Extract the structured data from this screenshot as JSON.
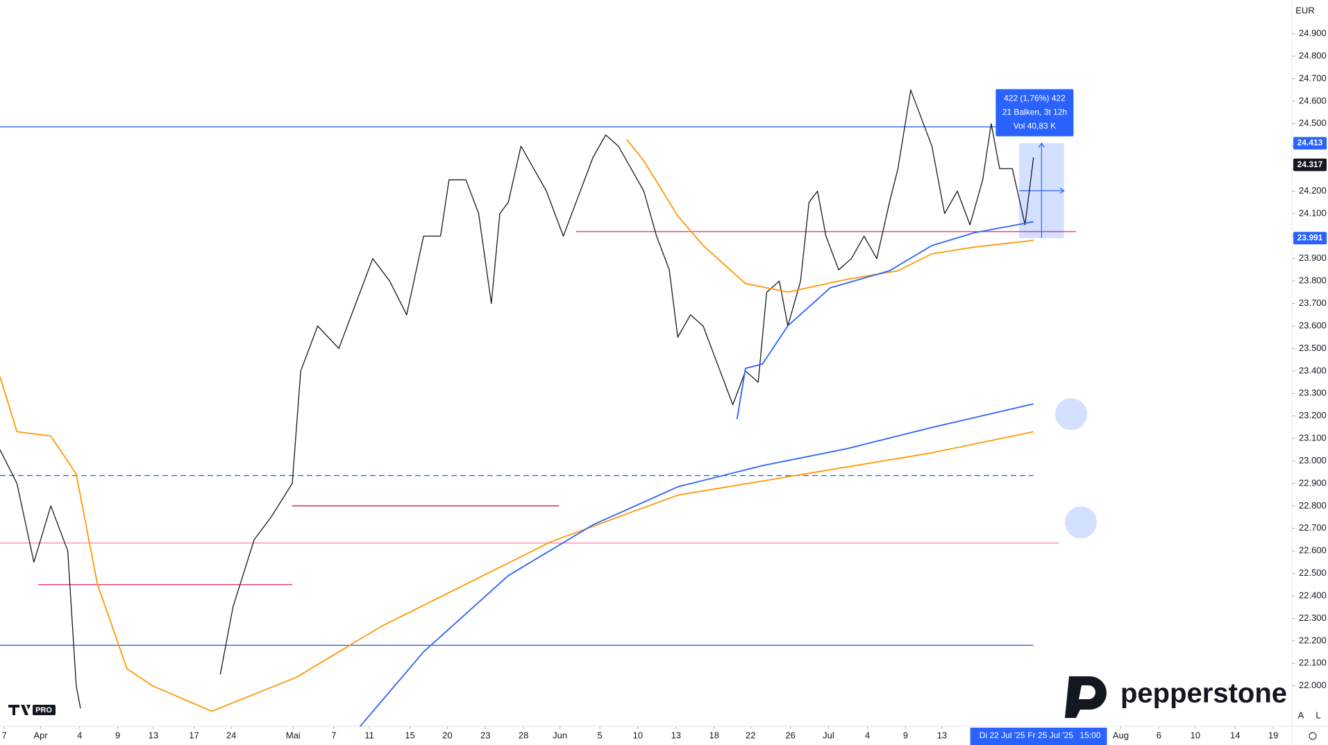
{
  "chart_data": {
    "type": "line",
    "currency": "EUR",
    "ylim": [
      21820,
      25050
    ],
    "xlim": [
      0,
      305
    ],
    "yticks": [
      {
        "value": 22000,
        "label": "22.000"
      },
      {
        "value": 22100,
        "label": "22.100"
      },
      {
        "value": 22200,
        "label": "22.200"
      },
      {
        "value": 22300,
        "label": "22.300"
      },
      {
        "value": 22400,
        "label": "22.400"
      },
      {
        "value": 22500,
        "label": "22.500"
      },
      {
        "value": 22600,
        "label": "22.600"
      },
      {
        "value": 22700,
        "label": "22.700"
      },
      {
        "value": 22800,
        "label": "22.800"
      },
      {
        "value": 22900,
        "label": "22.900"
      },
      {
        "value": 23000,
        "label": "23.000"
      },
      {
        "value": 23100,
        "label": "23.100"
      },
      {
        "value": 23200,
        "label": "23.200"
      },
      {
        "value": 23300,
        "label": "23.300"
      },
      {
        "value": 23400,
        "label": "23.400"
      },
      {
        "value": 23500,
        "label": "23.500"
      },
      {
        "value": 23600,
        "label": "23.600"
      },
      {
        "value": 23700,
        "label": "23.700"
      },
      {
        "value": 23800,
        "label": "23.800"
      },
      {
        "value": 23900,
        "label": "23.900"
      },
      {
        "value": 24000,
        "label": "24.000"
      },
      {
        "value": 24100,
        "label": "24.100"
      },
      {
        "value": 24200,
        "label": "24.200"
      },
      {
        "value": 24300,
        "label": "24.300"
      },
      {
        "value": 24400,
        "label": "24.400"
      },
      {
        "value": 24500,
        "label": "24.500"
      },
      {
        "value": 24600,
        "label": "24.600"
      },
      {
        "value": 24700,
        "label": "24.700"
      },
      {
        "value": 24800,
        "label": "24.800"
      },
      {
        "value": 24900,
        "label": "24.900"
      }
    ],
    "xticks": [
      {
        "value": 1,
        "label": "7"
      },
      {
        "value": 9.6,
        "label": "Apr"
      },
      {
        "value": 18.8,
        "label": "4"
      },
      {
        "value": 27.8,
        "label": "9"
      },
      {
        "value": 36.2,
        "label": "13"
      },
      {
        "value": 45.8,
        "label": "17"
      },
      {
        "value": 54.6,
        "label": "24"
      },
      {
        "value": 69.2,
        "label": "Mai"
      },
      {
        "value": 78.8,
        "label": "7"
      },
      {
        "value": 87.2,
        "label": "11"
      },
      {
        "value": 96.8,
        "label": "15"
      },
      {
        "value": 105.6,
        "label": "20"
      },
      {
        "value": 114.6,
        "label": "23"
      },
      {
        "value": 123.6,
        "label": "28"
      },
      {
        "value": 132.2,
        "label": "Jun"
      },
      {
        "value": 141.6,
        "label": "5"
      },
      {
        "value": 150.6,
        "label": "10"
      },
      {
        "value": 159.6,
        "label": "13"
      },
      {
        "value": 168.6,
        "label": "18"
      },
      {
        "value": 177.2,
        "label": "22"
      },
      {
        "value": 186.6,
        "label": "26"
      },
      {
        "value": 195.6,
        "label": "Jul"
      },
      {
        "value": 204.8,
        "label": "4"
      },
      {
        "value": 213.8,
        "label": "9"
      },
      {
        "value": 222.4,
        "label": "13"
      },
      {
        "value": 264.6,
        "label": "Aug"
      },
      {
        "value": 273.6,
        "label": "6"
      },
      {
        "value": 282.2,
        "label": "10"
      },
      {
        "value": 291.6,
        "label": "14"
      },
      {
        "value": 300.6,
        "label": "19"
      }
    ],
    "crosshair_labels": [
      {
        "value": 236.6,
        "label": "Di 22 Jul '25"
      },
      {
        "value": 248,
        "label": "Fr 25 Jul '25"
      },
      {
        "value": 257.4,
        "label": "15:00"
      }
    ],
    "series": [
      {
        "color": "#131722",
        "width": 1.3,
        "x": [
          0,
          4,
          8,
          12,
          16,
          18,
          19,
          35,
          52,
          55,
          60,
          64,
          69,
          71,
          75,
          80,
          84,
          88,
          92,
          96,
          100,
          104,
          106,
          110,
          113,
          116,
          118,
          120,
          123,
          126,
          129,
          133,
          136,
          140,
          143,
          146,
          149,
          152,
          155,
          158,
          160,
          163,
          166,
          170,
          173,
          176,
          179,
          181,
          184,
          186,
          189,
          191,
          193,
          195,
          198,
          201,
          204,
          207,
          210,
          212,
          215,
          218,
          220,
          223,
          226,
          229,
          232,
          234,
          236,
          239,
          242,
          244
        ],
        "values": [
          23050,
          22900,
          22550,
          22800,
          22600,
          22000,
          21900,
          null,
          22050,
          22350,
          22650,
          22750,
          22900,
          23400,
          23600,
          23500,
          23700,
          23900,
          23800,
          23650,
          24000,
          24000,
          24250,
          24250,
          24100,
          23700,
          24100,
          24150,
          24400,
          24300,
          24200,
          24000,
          24150,
          24350,
          24450,
          24400,
          24300,
          24200,
          24000,
          23850,
          23550,
          23650,
          23600,
          23400,
          23250,
          23400,
          23350,
          23750,
          23800,
          23600,
          23800,
          24150,
          24200,
          24000,
          23850,
          23900,
          24000,
          23900,
          24150,
          24300,
          24650,
          24500,
          24400,
          24100,
          24200,
          24050,
          24250,
          24500,
          24300,
          24300,
          24050,
          24350
        ]
      },
      {
        "color": "#ff9800",
        "width": 1.8,
        "x": [
          0,
          4,
          12,
          18,
          23,
          30,
          36,
          50,
          70,
          90,
          110,
          130,
          160,
          190,
          220,
          244
        ],
        "values": [
          23375,
          23130,
          23111,
          22942,
          22452,
          22075,
          22000,
          21887,
          22038,
          22264,
          22452,
          22640,
          22848,
          22942,
          23036,
          23130
        ]
      },
      {
        "color": "#ff9800",
        "width": 1.8,
        "x": [
          148,
          152,
          160,
          166,
          176,
          186,
          200,
          212,
          220,
          230,
          244
        ],
        "values": [
          24429,
          24335,
          24090,
          23958,
          23789,
          23751,
          23808,
          23846,
          23921,
          23951,
          23981
        ]
      },
      {
        "color": "#2962ff",
        "width": 1.8,
        "x": [
          85,
          100,
          120,
          140,
          160,
          180,
          200,
          220,
          244
        ],
        "values": [
          21819,
          22151,
          22490,
          22716,
          22885,
          22979,
          23055,
          23149,
          23254
        ]
      },
      {
        "color": "#2962ff",
        "width": 1.8,
        "x": [
          174,
          176,
          180,
          186,
          196,
          210,
          220,
          230,
          244
        ],
        "values": [
          23186,
          23412,
          23431,
          23601,
          23770,
          23846,
          23958,
          24015,
          24064
        ]
      }
    ],
    "levels": [
      {
        "value": 24486,
        "color": "#2962ff",
        "dashed": false,
        "xlim": [
          0,
          244
        ]
      },
      {
        "value": 24020,
        "color": "#e91e63",
        "dashed": false,
        "xlim": [
          136,
          254
        ]
      },
      {
        "value": 22935,
        "color": "#2962ff",
        "dashed": true,
        "xlim": [
          0,
          244
        ]
      },
      {
        "value": 22800,
        "color": "#c2185b",
        "dashed": false,
        "xlim": [
          69,
          132
        ]
      },
      {
        "value": 22635,
        "color": "#f48fb1",
        "dashed": false,
        "xlim": [
          0,
          250
        ]
      },
      {
        "value": 22450,
        "color": "#e91e63",
        "dashed": false,
        "xlim": [
          9,
          69
        ]
      },
      {
        "value": 22180,
        "color": "#2962ff",
        "dashed": false,
        "xlim": [
          0,
          244
        ]
      }
    ],
    "measure": {
      "xlim": [
        240.6,
        251.2
      ],
      "high": {
        "value": 24413,
        "label": "24.413"
      },
      "low": {
        "value": 23991,
        "label": "23.991"
      },
      "lines": [
        "422 (1,76%) 422",
        "21 Balken, 3t 12h",
        "Vol 40,83 K"
      ]
    },
    "last_price": {
      "value": 24317,
      "label": "24.317"
    }
  },
  "branding": {
    "logo_text": "pepperstone",
    "tv_badge": "PRO",
    "buttons": [
      "A",
      "L"
    ]
  }
}
